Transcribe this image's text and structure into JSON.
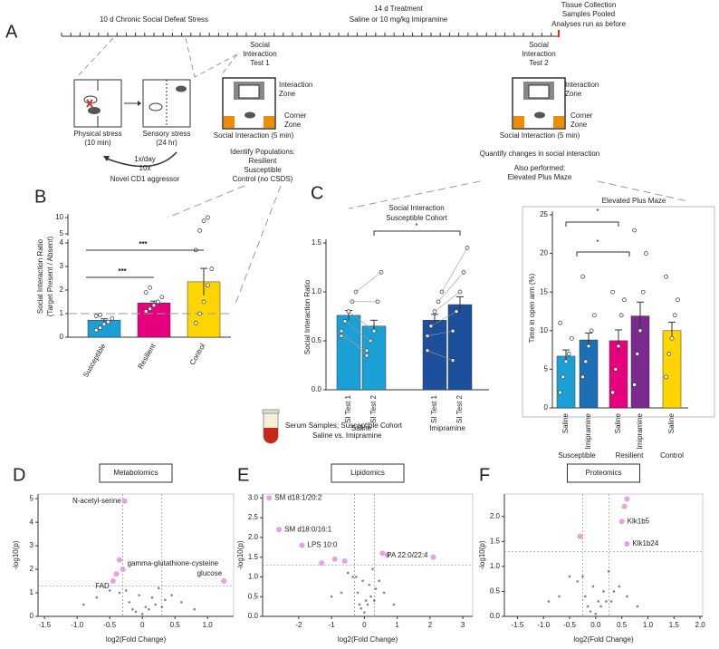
{
  "panel_a": {
    "label": "A",
    "timeline": [
      "10 d Chronic Social Defeat Stress",
      "14 d Treatment",
      "Saline or 10 mg/kg Imipramine",
      "Tissue Collection",
      "Samples Pooled",
      "Analyses run as before"
    ],
    "test1": [
      "Social",
      "Interaction",
      "Test 1"
    ],
    "test2": [
      "Social",
      "Interaction",
      "Test 2"
    ],
    "physical": [
      "Physical stress",
      "(10 min)"
    ],
    "sensory": [
      "Sensory stress",
      "(24 hr)"
    ],
    "cycle": [
      "1x/day",
      "10x",
      "Novel CD1 aggressor"
    ],
    "zones": [
      "Interaction",
      "Zone",
      "Corner",
      "Zone"
    ],
    "zones2": [
      "Interaction",
      "Zone",
      "Corner",
      "Zone"
    ],
    "si": "Social Interaction (5 min)",
    "si2": "Social Interaction (5 min)",
    "identify": [
      "Identify Populations:",
      "Resilient",
      "Susceptible",
      "Control (no CSDS)"
    ],
    "quantify": [
      "Quantify changes in social interaction",
      "Also performed:",
      "Elevated Plus Maze"
    ]
  },
  "panel_b": {
    "label": "B",
    "ylabel": [
      "Social Interaction Ratio",
      "(Target Present / Absent)"
    ],
    "categories": [
      "Susceptible",
      "Resilient",
      "Control"
    ],
    "values": [
      0.72,
      1.45,
      2.35
    ],
    "errors": [
      0.06,
      0.08,
      0.57
    ],
    "colors": [
      "#1ba0d6",
      "#e6007e",
      "#ffd500"
    ],
    "points": [
      [
        0.3,
        0.4,
        0.55,
        0.65,
        0.8,
        0.9,
        0.95
      ],
      [
        1.1,
        1.2,
        1.35,
        1.5,
        1.7,
        1.9,
        2.1
      ],
      [
        0.6,
        1.0,
        1.5,
        2.2,
        2.9,
        3.7,
        6,
        9,
        10
      ]
    ],
    "reference_line": 1,
    "ylim": [
      0,
      4
    ],
    "yticks": [
      0,
      1,
      2,
      3,
      4
    ],
    "ylim_upper": [
      5,
      10
    ],
    "yticks_upper": [
      5,
      10
    ],
    "significance": [
      "***",
      "***"
    ]
  },
  "panel_c_si": {
    "label": "C",
    "title": [
      "Social Interaction",
      "Susceptible Cohort"
    ],
    "ylabel": "Social Interaction Ratio",
    "groups": [
      "Saline",
      "Imipramine"
    ],
    "categories": [
      "SI Test 1",
      "SI Test 2",
      "SI Test 1",
      "SI Test 2"
    ],
    "values": [
      0.76,
      0.65,
      0.71,
      0.87
    ],
    "errors": [
      0.05,
      0.06,
      0.06,
      0.08
    ],
    "colors": [
      "#1ba0d6",
      "#1ba0d6",
      "#1c4f9c",
      "#1c4f9c"
    ],
    "points": [
      [
        0.55,
        0.7,
        0.8,
        0.9,
        1.0,
        0.6
      ],
      [
        0.4,
        0.5,
        0.6,
        0.9,
        1.2,
        0.35
      ],
      [
        0.4,
        0.65,
        0.8,
        0.9,
        1.0,
        0.55
      ],
      [
        0.3,
        0.8,
        1.0,
        1.2,
        1.45,
        0.6
      ]
    ],
    "ylim": [
      0,
      1.5
    ],
    "yticks": [
      {
        "value": 0,
        "label": "0.0"
      },
      {
        "value": 0.5,
        "label": "0.5"
      },
      {
        "value": 1,
        "label": "1.0"
      },
      {
        "value": 1.5,
        "label": "1.5"
      }
    ],
    "significance": "*"
  },
  "panel_c_epm": {
    "title": "Elevated Plus Maze",
    "ylabel": "Time in open arm (%)",
    "groups": [
      "Susceptible",
      "Resilient",
      "Control"
    ],
    "categories": [
      "Saline",
      "Imipramine",
      "Saline",
      "Imipramine",
      "Saline"
    ],
    "values": [
      6.7,
      8.8,
      8.7,
      11.9,
      10.0
    ],
    "errors": [
      0.8,
      0.9,
      1.4,
      1.8,
      1.1
    ],
    "colors": [
      "#1ba0d6",
      "#1c6fb4",
      "#e6007e",
      "#7b2a8f",
      "#ffd500"
    ],
    "points": [
      [
        2,
        4,
        6,
        7,
        9,
        11
      ],
      [
        4,
        6,
        8,
        10,
        12,
        17
      ],
      [
        2,
        5,
        8,
        12,
        14,
        15
      ],
      [
        3,
        7,
        10,
        15,
        20,
        23
      ],
      [
        4,
        7,
        9,
        12,
        14,
        17
      ]
    ],
    "ylim": [
      0,
      25
    ],
    "yticks": [
      0,
      5,
      10,
      15,
      20,
      25
    ],
    "significance": [
      "*",
      "*"
    ]
  },
  "serum": [
    "Serum Samples; Susceptible Cohort",
    "Saline vs. Imipramine"
  ],
  "panel_d": {
    "label": "D",
    "title": "Metabolomics",
    "xlabel": "log2(Fold Change)",
    "ylabel": "-log10(p)",
    "xlim": [
      -1.6,
      1.4
    ],
    "ylim": [
      0,
      5.2
    ],
    "xticks": [
      -1.5,
      {
        "value": -1,
        "label": "-1.0"
      },
      -0.5,
      0,
      0.5,
      {
        "value": 1,
        "label": "1.0"
      }
    ],
    "yticks": [
      0,
      1,
      2,
      3,
      4,
      5
    ],
    "thresholds": {
      "x": [
        -0.3,
        0.3
      ],
      "y": 1.3
    },
    "background": {
      "x": [
        -0.1,
        0.05,
        -0.2,
        0.1,
        0.15,
        -0.05,
        0.2,
        -0.35,
        0.35,
        -0.5,
        0.45,
        -0.15,
        0.0,
        0.25,
        -0.7,
        0.6,
        -0.25,
        0.3,
        -0.9,
        0.8
      ],
      "y": [
        0.2,
        0.4,
        0.6,
        0.3,
        0.8,
        0.9,
        0.5,
        1.0,
        0.7,
        1.1,
        0.9,
        0.3,
        0.1,
        1.2,
        0.8,
        0.6,
        1.1,
        0.4,
        0.5,
        0.3
      ]
    },
    "highlight": {
      "x": [
        -0.27,
        -0.3,
        -0.45,
        1.25,
        -0.35,
        -0.4
      ],
      "y": [
        4.9,
        2.0,
        1.5,
        1.5,
        2.4,
        1.8
      ]
    },
    "labels": [
      "N-acetyl-serine",
      "gamma-glutathione-cysteine",
      "FAD",
      "glucose"
    ]
  },
  "panel_e": {
    "label": "E",
    "title": "Lipidomics",
    "xlabel": "log2(Fold Change)",
    "ylabel": "-log10(p)",
    "xlim": [
      -3.1,
      3.3
    ],
    "ylim": [
      0,
      3.1
    ],
    "xticks": [
      -2,
      -1,
      0,
      1,
      2,
      3
    ],
    "yticks": [
      {
        "value": 0,
        "label": "0.0"
      },
      {
        "value": 0.5,
        "label": "0.5"
      },
      {
        "value": 1,
        "label": "1.0"
      },
      {
        "value": 1.5,
        "label": "1.5"
      },
      {
        "value": 2,
        "label": "2.0"
      },
      {
        "value": 2.5,
        "label": "2.5"
      },
      {
        "value": 3,
        "label": "3.0"
      }
    ],
    "thresholds": {
      "x": [
        -0.3,
        0.3
      ],
      "y": 1.3
    },
    "background": {
      "x": [
        -0.1,
        0.05,
        -0.2,
        0.1,
        0.15,
        -0.05,
        0.2,
        -0.35,
        0.35,
        -0.5,
        0.45,
        -0.15,
        0.0,
        0.25,
        -0.7,
        0.6,
        -0.25,
        0.3,
        -1.0,
        0.9
      ],
      "y": [
        0.2,
        0.4,
        0.6,
        0.3,
        0.8,
        0.9,
        0.5,
        1.0,
        0.7,
        1.1,
        0.9,
        0.3,
        0.1,
        1.2,
        0.6,
        0.6,
        1.0,
        0.4,
        0.5,
        0.3
      ]
    },
    "highlight": {
      "x": [
        -2.9,
        -2.6,
        -1.9,
        2.1,
        -1.3,
        -0.9,
        -0.6,
        0.55,
        0.7
      ],
      "y": [
        3.0,
        2.2,
        1.8,
        1.5,
        1.35,
        1.45,
        1.4,
        1.6,
        1.55
      ]
    },
    "labels": [
      "SM d18:1/20:2",
      "SM d18:0/16:1",
      "LPS 10:0",
      "PA 22:0/22:4"
    ]
  },
  "panel_f": {
    "label": "F",
    "title": "Proteomics",
    "xlabel": "log2(Fold Change)",
    "ylabel": "-log10(p)",
    "xlim": [
      -1.75,
      2.05
    ],
    "ylim": [
      0,
      2.45
    ],
    "xticks": [
      -1.5,
      {
        "value": -1,
        "label": "-1.0"
      },
      -0.5,
      {
        "value": 0,
        "label": "0.0"
      },
      0.5,
      {
        "value": 1,
        "label": "1.0"
      },
      1.5,
      {
        "value": 2,
        "label": "2.0"
      }
    ],
    "yticks": [
      {
        "value": 0,
        "label": "0.0"
      },
      {
        "value": 0.5,
        "label": "0.5"
      },
      {
        "value": 1,
        "label": "1.0"
      },
      {
        "value": 1.5,
        "label": "1.5"
      },
      {
        "value": 2,
        "label": "2.0"
      }
    ],
    "thresholds": {
      "x": [
        -0.25,
        0.25
      ],
      "y": 1.3
    },
    "background": {
      "x": [
        -0.1,
        0.05,
        -0.2,
        0.1,
        0.15,
        -0.05,
        0.2,
        -0.35,
        0.35,
        -0.5,
        0.45,
        -0.15,
        0.0,
        0.25,
        -0.7,
        0.6,
        -0.25,
        0.3,
        -0.9,
        0.8
      ],
      "y": [
        0.1,
        0.3,
        0.4,
        0.2,
        0.5,
        0.6,
        0.3,
        0.7,
        0.5,
        0.8,
        0.6,
        0.2,
        0.05,
        0.9,
        0.4,
        0.4,
        0.8,
        0.3,
        0.3,
        0.2
      ]
    },
    "highlight": {
      "x": [
        0.5,
        0.6,
        -0.3,
        0.6,
        0.55
      ],
      "y": [
        1.9,
        1.45,
        1.6,
        2.35,
        2.2
      ]
    },
    "labels": [
      "Klk1b5",
      "Klk1b24"
    ]
  }
}
